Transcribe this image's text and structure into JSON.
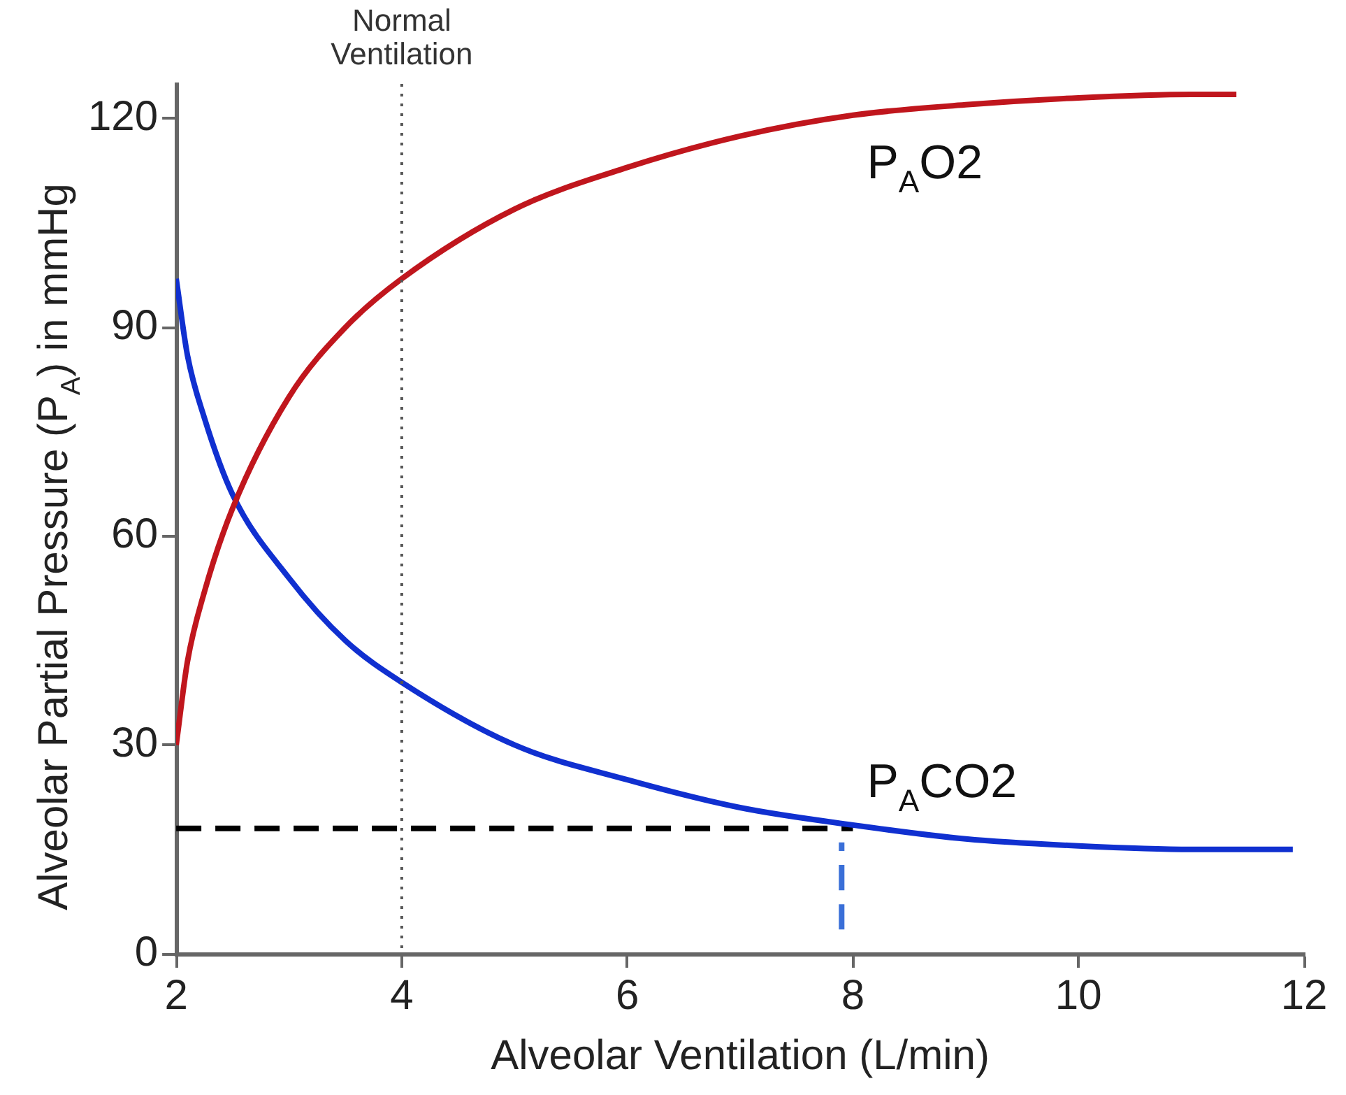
{
  "chart_data": {
    "type": "line",
    "xlabel": "Alveolar Ventilation (L/min)",
    "ylabel": "Alveolar Partial Pressure (P$_{A}$) in mmHg",
    "xlim": [
      2,
      12
    ],
    "xticks": [
      2,
      4,
      6,
      8,
      10,
      12
    ],
    "ylim": [
      0,
      125
    ],
    "yticks": [
      0,
      30,
      60,
      90,
      120
    ],
    "legend": false,
    "marker": "none",
    "series": [
      {
        "name": "P$_{A}$O2",
        "color": "#c0161d",
        "x": [
          2,
          2.1,
          2.25,
          2.5,
          3,
          3.5,
          4,
          5,
          6,
          7,
          8,
          9,
          10,
          11,
          11.4
        ],
        "values": [
          30,
          42,
          52,
          64,
          80,
          90,
          97,
          107,
          113,
          117.5,
          120.5,
          122,
          123,
          123.5,
          123.5
        ]
      },
      {
        "name": "P$_{A}$CO2",
        "color": "#1030d0",
        "x": [
          2,
          2.1,
          2.25,
          2.5,
          3,
          3.5,
          4,
          5,
          6,
          7,
          8,
          9,
          10,
          11,
          11.9
        ],
        "values": [
          97,
          86,
          77,
          66,
          54,
          45,
          39,
          30,
          25,
          21,
          18.5,
          16.5,
          15.5,
          15,
          15
        ]
      },
      {
        "color": "#000000",
        "line_style": "dashed",
        "x": [
          2,
          8
        ],
        "values": [
          18,
          18
        ]
      },
      {
        "color": "#3a6fd8",
        "line_style": "dashed",
        "x": [
          7.9,
          7.9
        ],
        "values": [
          3.5,
          16
        ]
      }
    ],
    "ref_lines": [
      {
        "axis": "x",
        "value": 4,
        "label": "Normal Ventilation",
        "color": "#555555",
        "line_style": "dotted"
      }
    ]
  }
}
